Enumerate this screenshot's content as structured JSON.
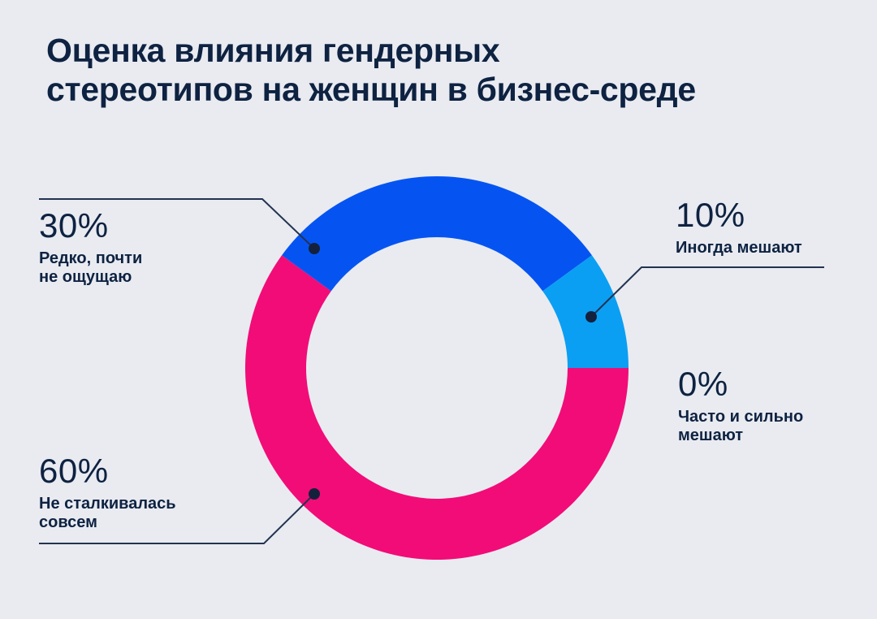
{
  "title": {
    "line1": "Оценка влияния гендерных",
    "line2": "стереотипов на женщин в бизнес-среде"
  },
  "chart_data": {
    "type": "pie",
    "donut": true,
    "title": "Оценка влияния гендерных стереотипов на женщин в бизнес-среде",
    "start_angle_deg": 0,
    "direction": "clockwise",
    "legend_position": "callouts",
    "segments": [
      {
        "id": "not-encountered",
        "label": "Не сталкивалась совсем",
        "value": 60,
        "color": "#F20C78"
      },
      {
        "id": "rarely",
        "label": "Редко, почти не ощущаю",
        "value": 30,
        "color": "#0554F2"
      },
      {
        "id": "sometimes",
        "label": "Иногда мешают",
        "value": 10,
        "color": "#0A9FF3"
      },
      {
        "id": "often",
        "label": "Часто и сильно мешают",
        "value": 0,
        "color": null
      }
    ]
  },
  "callouts": [
    {
      "id": "rarely",
      "percent": "30%",
      "label_lines": [
        "Редко, почти",
        "не ощущаю"
      ]
    },
    {
      "id": "sometimes",
      "percent": "10%",
      "label_lines": [
        "Иногда мешают"
      ]
    },
    {
      "id": "often",
      "percent": "0%",
      "label_lines": [
        "Часто и сильно",
        "мешают"
      ]
    },
    {
      "id": "not-encountered",
      "percent": "60%",
      "label_lines": [
        "Не сталкивалась",
        "совсем"
      ]
    }
  ],
  "colors": {
    "background": "#E9EBF1",
    "text": "#0E2241",
    "connector_line": "#233350",
    "connector_dot": "#14213D",
    "segment_pink": "#F20C78",
    "segment_blue": "#0554F2",
    "segment_light_blue": "#0A9FF3"
  }
}
